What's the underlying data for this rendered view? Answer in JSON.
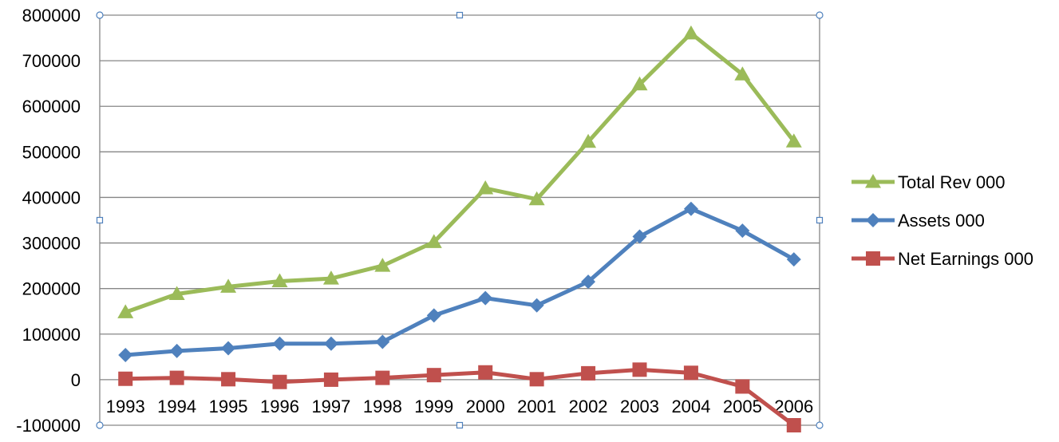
{
  "chart_data": {
    "type": "line",
    "title": "",
    "xlabel": "",
    "ylabel": "",
    "categories": [
      "1993",
      "1994",
      "1995",
      "1996",
      "1997",
      "1998",
      "1999",
      "2000",
      "2001",
      "2002",
      "2003",
      "2004",
      "2005",
      "2006"
    ],
    "ylim": [
      -100000,
      800000
    ],
    "yticks": [
      -100000,
      0,
      100000,
      200000,
      300000,
      400000,
      500000,
      600000,
      700000,
      800000
    ],
    "ytick_labels": [
      "-100000",
      "0",
      "100000",
      "200000",
      "300000",
      "400000",
      "500000",
      "600000",
      "700000",
      "800000"
    ],
    "grid": true,
    "legend_position": "right",
    "series": [
      {
        "name": "Total Rev 000",
        "color": "#9BBB59",
        "marker": "triangle",
        "values": [
          148000,
          188000,
          204000,
          216000,
          222000,
          250000,
          302000,
          420000,
          396000,
          522000,
          648000,
          760000,
          670000,
          523000
        ]
      },
      {
        "name": "Assets 000",
        "color": "#4F81BD",
        "marker": "diamond",
        "values": [
          54000,
          63000,
          69000,
          79000,
          79000,
          83000,
          141000,
          179000,
          163000,
          215000,
          314000,
          375000,
          327000,
          264000
        ]
      },
      {
        "name": "Net Earnings 000",
        "color": "#C0504D",
        "marker": "square",
        "values": [
          2000,
          4000,
          1000,
          -5000,
          0,
          4000,
          10000,
          16000,
          1000,
          14000,
          22000,
          15000,
          -15000,
          -100000
        ]
      }
    ]
  }
}
